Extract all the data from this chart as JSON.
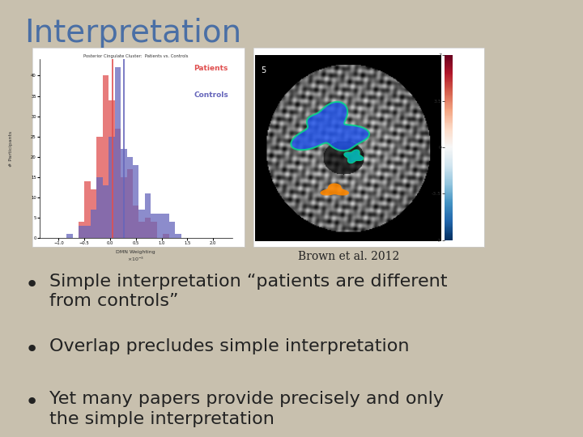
{
  "title": "Interpretation",
  "title_color": "#4a6fa5",
  "title_fontsize": 28,
  "background_color": "#c8c0ae",
  "bullet_points": [
    "Simple interpretation “patients are different\nfrom controls”",
    "Overlap precludes simple interpretation",
    "Yet many papers provide precisely and only\nthe simple interpretation"
  ],
  "bullet_fontsize": 16,
  "bullet_color": "#222222",
  "caption": "Brown et al. 2012",
  "caption_fontsize": 10,
  "caption_color": "#222222",
  "hist_legend_patients": "Patients",
  "hist_legend_controls": "Controls",
  "patients_color": "#e05050",
  "controls_color": "#6666bb",
  "panel_bg": "#ffffff",
  "panel_border": "#cccccc",
  "hist_title": "Posterior Cingulate Cluster:  Patients vs. Controls",
  "hist_xlabel": "DMN Weighting",
  "hist_ylabel": "# Participants",
  "brain_label": "5",
  "cbar_ticks": [
    "7",
    "3.5",
    "0",
    "-3.5",
    "-7"
  ]
}
